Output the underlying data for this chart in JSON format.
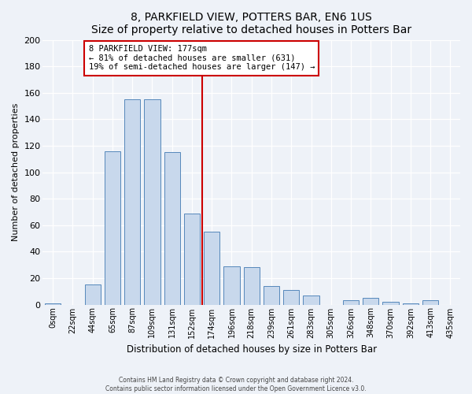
{
  "title": "8, PARKFIELD VIEW, POTTERS BAR, EN6 1US",
  "subtitle": "Size of property relative to detached houses in Potters Bar",
  "xlabel": "Distribution of detached houses by size in Potters Bar",
  "ylabel": "Number of detached properties",
  "bin_labels": [
    "0sqm",
    "22sqm",
    "44sqm",
    "65sqm",
    "87sqm",
    "109sqm",
    "131sqm",
    "152sqm",
    "174sqm",
    "196sqm",
    "218sqm",
    "239sqm",
    "261sqm",
    "283sqm",
    "305sqm",
    "326sqm",
    "348sqm",
    "370sqm",
    "392sqm",
    "413sqm",
    "435sqm"
  ],
  "bar_heights": [
    1,
    0,
    15,
    116,
    155,
    155,
    115,
    69,
    55,
    29,
    28,
    14,
    11,
    7,
    0,
    3,
    5,
    2,
    1,
    3,
    0
  ],
  "bar_color": "#c8d8ec",
  "bar_edge_color": "#5588bb",
  "vline_x": 8,
  "vline_color": "#cc0000",
  "annotation_title": "8 PARKFIELD VIEW: 177sqm",
  "annotation_line1": "← 81% of detached houses are smaller (631)",
  "annotation_line2": "19% of semi-detached houses are larger (147) →",
  "annotation_box_color": "#ffffff",
  "annotation_box_edge": "#cc0000",
  "ylim": [
    0,
    200
  ],
  "yticks": [
    0,
    20,
    40,
    60,
    80,
    100,
    120,
    140,
    160,
    180,
    200
  ],
  "footer1": "Contains HM Land Registry data © Crown copyright and database right 2024.",
  "footer2": "Contains public sector information licensed under the Open Government Licence v3.0.",
  "bg_color": "#eef2f8"
}
